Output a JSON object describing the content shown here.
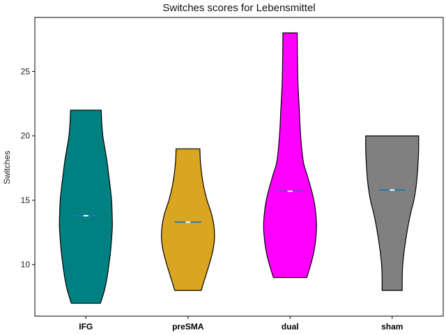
{
  "chart_data": {
    "type": "violin",
    "title": "Switches scores for Lebensmittel",
    "xlabel": "",
    "ylabel": "Switches",
    "ylim": [
      6,
      29.2
    ],
    "yticks": [
      10,
      15,
      20,
      25
    ],
    "grid": false,
    "categories": [
      "IFG",
      "preSMA",
      "dual",
      "sham"
    ],
    "series": [
      {
        "category": "IFG",
        "color": "#008080",
        "min": 7,
        "max": 22,
        "mean": 13.8,
        "median": 13.8,
        "density": [
          [
            7,
            0.55
          ],
          [
            8,
            0.7
          ],
          [
            9,
            0.8
          ],
          [
            10,
            0.87
          ],
          [
            11,
            0.93
          ],
          [
            12,
            0.97
          ],
          [
            13,
            1.0
          ],
          [
            14,
            0.99
          ],
          [
            15,
            0.97
          ],
          [
            16,
            0.92
          ],
          [
            17,
            0.86
          ],
          [
            18,
            0.8
          ],
          [
            19,
            0.72
          ],
          [
            20,
            0.64
          ],
          [
            21,
            0.6
          ],
          [
            22,
            0.58
          ]
        ]
      },
      {
        "category": "preSMA",
        "color": "#DAA520",
        "min": 8,
        "max": 19,
        "mean": 13.3,
        "median": 13.3,
        "density": [
          [
            8,
            0.5
          ],
          [
            9,
            0.65
          ],
          [
            10,
            0.8
          ],
          [
            11,
            0.93
          ],
          [
            12,
            1.0
          ],
          [
            13,
            0.98
          ],
          [
            14,
            0.88
          ],
          [
            15,
            0.72
          ],
          [
            16,
            0.6
          ],
          [
            17,
            0.52
          ],
          [
            18,
            0.47
          ],
          [
            19,
            0.45
          ]
        ]
      },
      {
        "category": "dual",
        "color": "#FF00FF",
        "min": 9,
        "max": 28,
        "mean": 15.7,
        "median": 15.7,
        "density": [
          [
            9,
            0.63
          ],
          [
            10,
            0.78
          ],
          [
            11,
            0.9
          ],
          [
            12,
            0.97
          ],
          [
            13,
            1.0
          ],
          [
            14,
            0.97
          ],
          [
            15,
            0.9
          ],
          [
            16,
            0.78
          ],
          [
            17,
            0.64
          ],
          [
            18,
            0.5
          ],
          [
            20,
            0.4
          ],
          [
            22,
            0.35
          ],
          [
            24,
            0.3
          ],
          [
            26,
            0.28
          ],
          [
            28,
            0.27
          ]
        ]
      },
      {
        "category": "sham",
        "color": "#808080",
        "min": 8,
        "max": 20,
        "mean": 15.8,
        "median": 15.8,
        "density": [
          [
            8,
            0.38
          ],
          [
            9,
            0.38
          ],
          [
            10,
            0.4
          ],
          [
            11,
            0.45
          ],
          [
            12,
            0.52
          ],
          [
            13,
            0.6
          ],
          [
            14,
            0.7
          ],
          [
            15,
            0.82
          ],
          [
            16,
            0.9
          ],
          [
            17,
            0.95
          ],
          [
            18,
            0.98
          ],
          [
            19,
            1.0
          ],
          [
            20,
            1.0
          ]
        ]
      }
    ],
    "mean_marker_color": "#1f77b4",
    "median_marker_color": "#ffffff"
  }
}
